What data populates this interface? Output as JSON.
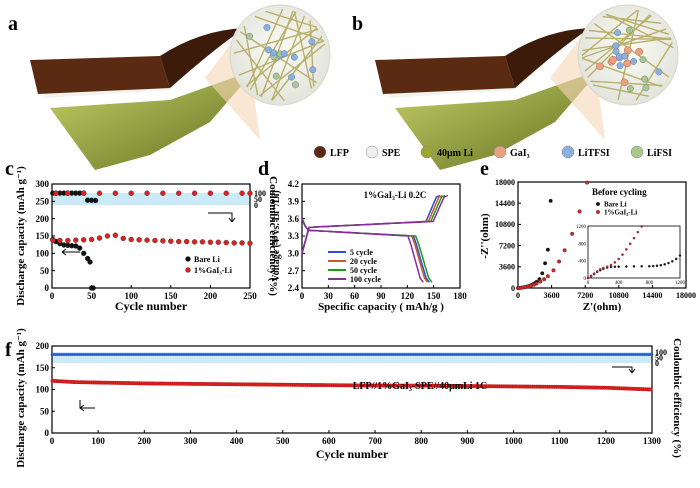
{
  "panel_labels": {
    "a": "a",
    "b": "b",
    "c": "c",
    "d": "d",
    "e": "e",
    "f": "f"
  },
  "legend_top": [
    {
      "label": "LFP",
      "color": "#5a2a12"
    },
    {
      "label": "SPE",
      "color": "#eeeeee"
    },
    {
      "label": "40μm Li",
      "color": "#9aa630"
    },
    {
      "label": "GaI₃",
      "color": "#e8a080"
    },
    {
      "label": "LiTFSI",
      "color": "#8ab0e0"
    },
    {
      "label": "LiFSI",
      "color": "#a8c890"
    }
  ],
  "colors": {
    "black": "#111111",
    "red": "#e02020",
    "blue": "#2a4fd0",
    "green": "#1f9a1f",
    "orange": "#c8582a",
    "purple": "#8a2aa0",
    "shade": "#c9eaf6"
  },
  "chart_data": [
    {
      "id": "c",
      "type": "scatter",
      "xlabel": "Cycle number",
      "ylabel": "Discharge capacity (mAh g⁻¹)",
      "y2label": "Coulombic efficiency (%)",
      "xlim": [
        0,
        250
      ],
      "ylim": [
        0,
        300
      ],
      "xticks": [
        "0",
        "50",
        "100",
        "150",
        "200",
        "250"
      ],
      "yticks": [
        "0",
        "50",
        "100",
        "150",
        "200",
        "250",
        "300"
      ],
      "y2ticks": [
        "0",
        "50",
        "100"
      ],
      "series": [
        {
          "name": "Bare Li",
          "kind": "capacity",
          "x": [
            1,
            5,
            10,
            15,
            20,
            25,
            30,
            35,
            40,
            45,
            48,
            50,
            52
          ],
          "values": [
            140,
            134,
            128,
            124,
            123,
            122,
            121,
            115,
            100,
            85,
            75,
            0,
            0
          ]
        },
        {
          "name": "1%GaI₃-Li",
          "kind": "capacity",
          "x": [
            1,
            10,
            20,
            30,
            40,
            50,
            60,
            70,
            80,
            90,
            100,
            110,
            120,
            130,
            140,
            150,
            160,
            170,
            180,
            190,
            200,
            210,
            220,
            230,
            240,
            250
          ],
          "values": [
            138,
            137,
            137,
            138,
            139,
            140,
            144,
            150,
            152,
            143,
            140,
            139,
            138,
            137,
            136,
            135,
            134,
            134,
            133,
            133,
            132,
            132,
            131,
            130,
            130,
            129
          ]
        },
        {
          "name": "Bare Li CE",
          "kind": "ce",
          "x": [
            1,
            5,
            10,
            15,
            20,
            25,
            30,
            35,
            40,
            45,
            50,
            55
          ],
          "values": [
            99,
            99,
            99,
            99,
            99,
            99,
            99,
            99,
            99,
            40,
            39,
            38
          ]
        },
        {
          "name": "1%GaI₃-Li CE",
          "kind": "ce",
          "x": [
            5,
            20,
            40,
            60,
            80,
            100,
            120,
            140,
            160,
            180,
            200,
            220,
            240,
            250
          ],
          "values": [
            97,
            98,
            98,
            98,
            98,
            98,
            98,
            98,
            98,
            98,
            98,
            98,
            98,
            98
          ]
        }
      ],
      "legend": [
        "Bare Li",
        "1%GaI₃-Li"
      ]
    },
    {
      "id": "d",
      "type": "line",
      "title": "1%GaI₃-Li 0.2C",
      "xlabel": "Specific capacity ( mAh/g )",
      "ylabel": "Voltage (V vs. Li⁺/Li)",
      "xlim": [
        0,
        180
      ],
      "ylim": [
        2.4,
        4.2
      ],
      "xticks": [
        "0",
        "30",
        "60",
        "90",
        "120",
        "150",
        "180"
      ],
      "yticks": [
        "2.4",
        "2.7",
        "3.0",
        "3.3",
        "3.6",
        "3.9",
        "4.2"
      ],
      "series": [
        {
          "name": "5 cycle",
          "color": "#2a4fd0",
          "charge_end": 157,
          "discharge_end": 145
        },
        {
          "name": "20 cycle",
          "color": "#c8582a",
          "charge_end": 160,
          "discharge_end": 143
        },
        {
          "name": "50 cycle",
          "color": "#1f9a1f",
          "charge_end": 163,
          "discharge_end": 148
        },
        {
          "name": "100 cycle",
          "color": "#8a2aa0",
          "charge_end": 166,
          "discharge_end": 138
        }
      ]
    },
    {
      "id": "e",
      "type": "scatter",
      "title": "Before cycling",
      "xlabel": "Z'(ohm)",
      "ylabel": "-Z''(ohm)",
      "xlim": [
        0,
        18000
      ],
      "ylim": [
        0,
        18000
      ],
      "xticks": [
        "0",
        "3600",
        "7200",
        "10800",
        "14400",
        "18000"
      ],
      "yticks": [
        "0",
        "3600",
        "7200",
        "10800",
        "14400",
        "18000"
      ],
      "series": [
        {
          "name": "Bare Li",
          "x": [
            0,
            200,
            400,
            600,
            800,
            1000,
            1200,
            1400,
            1600,
            1800,
            2000,
            2300,
            2600,
            2900,
            3200,
            3500
          ],
          "values": [
            0,
            30,
            60,
            110,
            180,
            260,
            360,
            480,
            640,
            820,
            1030,
            1500,
            2500,
            4200,
            6500,
            14800
          ]
        },
        {
          "name": "1%GaI₃-Li",
          "x": [
            0,
            200,
            500,
            800,
            1100,
            1400,
            1700,
            2000,
            2400,
            2800,
            3200,
            3800,
            4400,
            5000,
            5800,
            6600,
            7400
          ],
          "values": [
            0,
            30,
            80,
            160,
            260,
            400,
            560,
            760,
            1100,
            1500,
            2000,
            3000,
            4500,
            6400,
            9200,
            13000,
            17900
          ]
        }
      ],
      "inset": {
        "xlim": [
          0,
          1200
        ],
        "ylim": [
          0,
          1200
        ],
        "xticks": [
          "0",
          "400",
          "800",
          "1200"
        ],
        "yticks": [
          "0",
          "400",
          "800",
          "1200"
        ],
        "bare_x": [
          0,
          40,
          80,
          120,
          160,
          200,
          250,
          300,
          350,
          400,
          500,
          600,
          700,
          800,
          850,
          900,
          950,
          1000,
          1050,
          1100,
          1150,
          1200
        ],
        "bare_y": [
          0,
          40,
          90,
          140,
          180,
          210,
          240,
          255,
          260,
          262,
          265,
          268,
          270,
          272,
          275,
          282,
          295,
          315,
          345,
          385,
          440,
          520
        ],
        "red_x": [
          0,
          40,
          80,
          120,
          160,
          200,
          250,
          300,
          350,
          400,
          450,
          500,
          550,
          600,
          650,
          700
        ],
        "red_y": [
          0,
          50,
          100,
          150,
          200,
          230,
          260,
          300,
          360,
          440,
          540,
          660,
          790,
          920,
          1060,
          1190
        ]
      },
      "legend": [
        "Bare Li",
        "1%GaI₃-Li"
      ]
    },
    {
      "id": "f",
      "type": "scatter",
      "annotation": "LFP//1%GaI₃-SPE//40μmLi  1C",
      "xlabel": "Cycle number",
      "ylabel": "Discharge capacity (mAh g⁻¹)",
      "y2label": "Coulombic efficiency (%)",
      "xlim": [
        0,
        1300
      ],
      "ylim": [
        0,
        200
      ],
      "xticks": [
        "0",
        "100",
        "200",
        "300",
        "400",
        "500",
        "600",
        "700",
        "800",
        "900",
        "1000",
        "1100",
        "1200",
        "1300"
      ],
      "yticks": [
        "0",
        "50",
        "100",
        "150",
        "200"
      ],
      "y2ticks": [
        "0",
        "50",
        "100"
      ],
      "series": [
        {
          "name": "capacity",
          "kind": "capacity",
          "x": [
            0,
            50,
            100,
            200,
            300,
            400,
            500,
            600,
            700,
            800,
            900,
            1000,
            1100,
            1200,
            1250,
            1300
          ],
          "values": [
            120,
            117,
            116,
            114,
            113,
            112,
            111,
            110,
            109,
            109,
            108,
            107,
            106,
            104,
            102,
            100
          ]
        },
        {
          "name": "CE",
          "kind": "ce",
          "x": [
            0,
            1300
          ],
          "values": [
            99.5,
            99.5
          ]
        }
      ]
    }
  ]
}
